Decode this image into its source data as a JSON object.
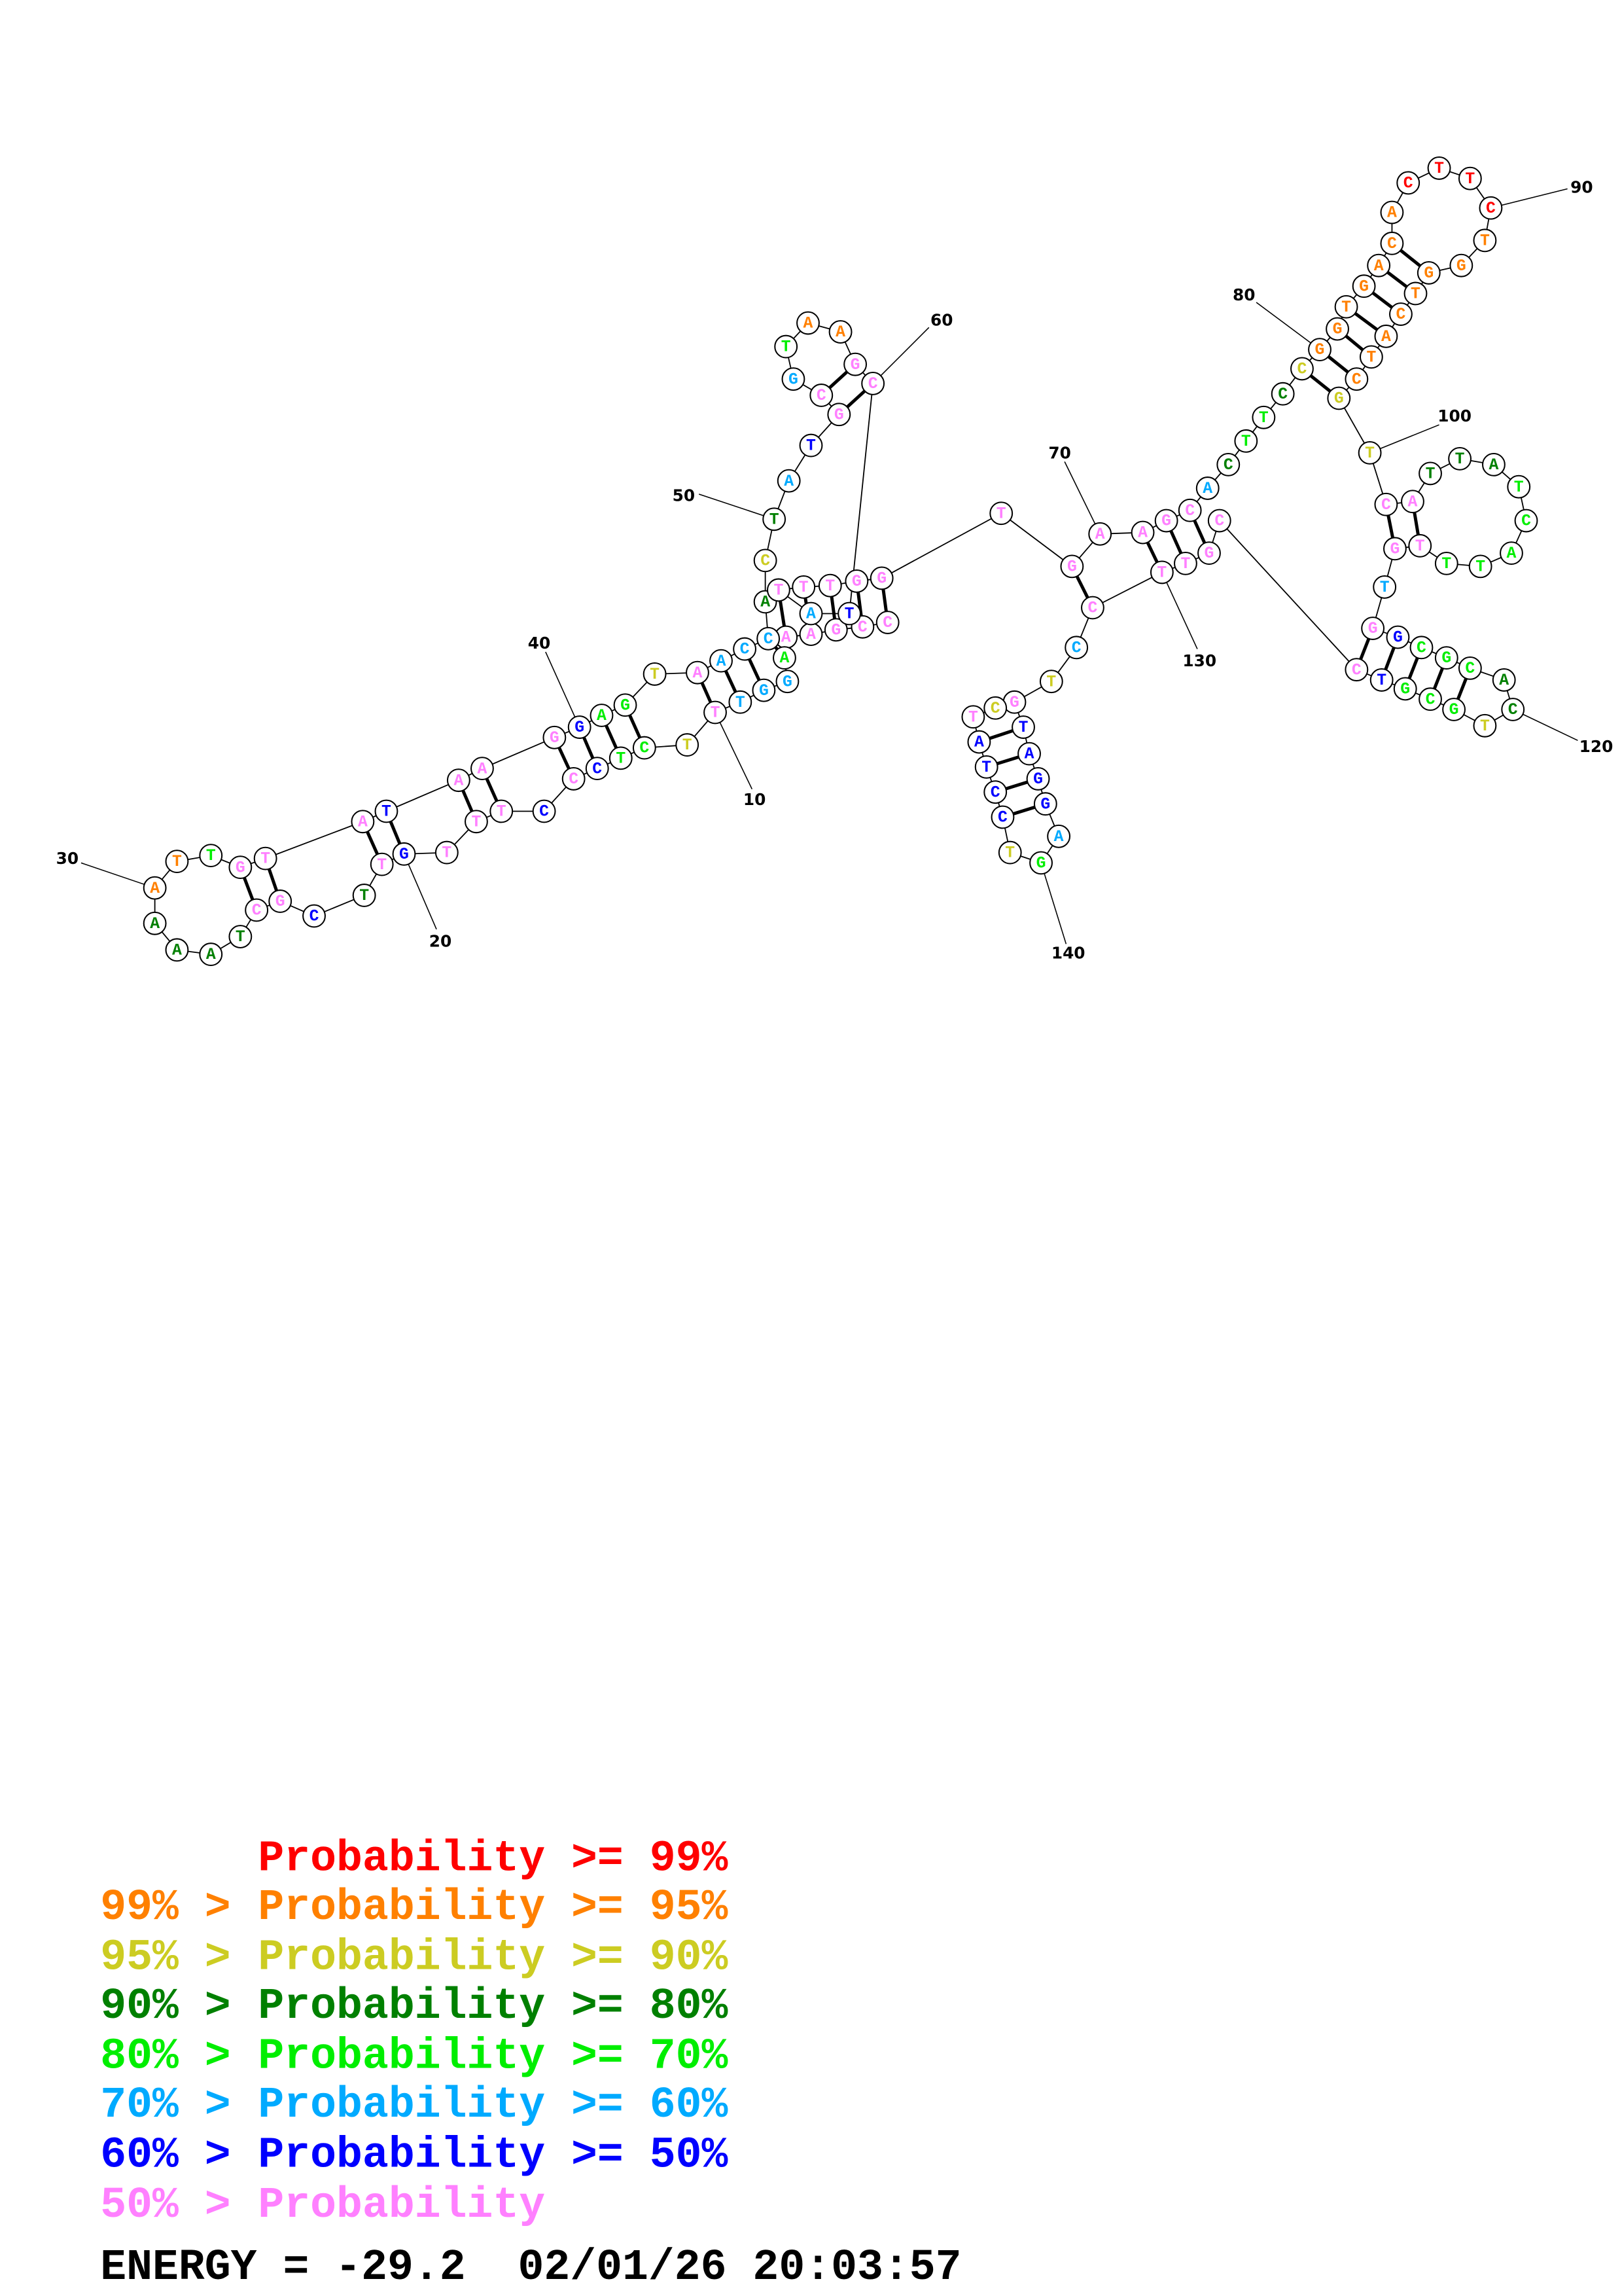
{
  "colors": {
    "R": "#ff0000",
    "O": "#ff8000",
    "Y": "#cccc22",
    "D": "#008000",
    "G": "#00ee00",
    "L": "#00aaff",
    "B": "#0000ff",
    "P": "#ff80ff"
  },
  "structure": {
    "sequence": "CCGAAAGGTTTCTCCCTTTGTTCGCTAAAATTGTATAAGGAGTAACCACTATGCGTAAGCTATTTGGTGAAGCACTTCCGGTGACACTTCTGGTCATCGTCATTATCATTTGTGGCGCACTGCGTCCGTTCCTGTAGGAGTCCTATC",
    "probability_classes": "PPPPPGLLLPYGGBPBPPPBPDBPPDDDDOOGPPPBPPPBGGYPLLLDYDLBPPLGOOPPBLPPPPPPPPPPPLDGGDYOOOOOOORRRROOOOOOOOYYPPDDDGGGGGPPLPBGGGDDYGGGBPPPPPPLYPBBBBLGYBBBBPY",
    "pairs": [
      [
        1,
        67
      ],
      [
        2,
        66
      ],
      [
        3,
        65
      ],
      [
        4,
        64
      ],
      [
        5,
        63
      ],
      [
        6,
        47
      ],
      [
        8,
        46
      ],
      [
        9,
        45
      ],
      [
        10,
        44
      ],
      [
        12,
        42
      ],
      [
        13,
        41
      ],
      [
        14,
        40
      ],
      [
        15,
        39
      ],
      [
        17,
        38
      ],
      [
        18,
        37
      ],
      [
        20,
        36
      ],
      [
        21,
        35
      ],
      [
        24,
        34
      ],
      [
        25,
        33
      ],
      [
        53,
        60
      ],
      [
        54,
        59
      ],
      [
        69,
        131
      ],
      [
        71,
        130
      ],
      [
        72,
        129
      ],
      [
        73,
        128
      ],
      [
        79,
        99
      ],
      [
        80,
        98
      ],
      [
        81,
        97
      ],
      [
        82,
        96
      ],
      [
        83,
        95
      ],
      [
        84,
        94
      ],
      [
        85,
        93
      ],
      [
        101,
        112
      ],
      [
        102,
        111
      ],
      [
        114,
        126
      ],
      [
        115,
        125
      ],
      [
        116,
        124
      ],
      [
        117,
        123
      ],
      [
        118,
        122
      ],
      [
        135,
        145
      ],
      [
        136,
        144
      ],
      [
        137,
        143
      ],
      [
        138,
        142
      ]
    ]
  },
  "position_labels": [
    {
      "nt": 10,
      "text": "10"
    },
    {
      "nt": 20,
      "text": "20"
    },
    {
      "nt": 30,
      "text": "30"
    },
    {
      "nt": 40,
      "text": "40"
    },
    {
      "nt": 50,
      "text": "50"
    },
    {
      "nt": 60,
      "text": "60"
    },
    {
      "nt": 70,
      "text": "70"
    },
    {
      "nt": 80,
      "text": "80"
    },
    {
      "nt": 90,
      "text": "90"
    },
    {
      "nt": 100,
      "text": "100"
    },
    {
      "nt": 120,
      "text": "120"
    },
    {
      "nt": 130,
      "text": "130"
    },
    {
      "nt": 140,
      "text": "140"
    }
  ],
  "legend": [
    {
      "prefix": "",
      "text": "Probability >= 99%",
      "color": "R"
    },
    {
      "prefix": "99% > ",
      "text": "Probability >= 95%",
      "color": "O"
    },
    {
      "prefix": "95% > ",
      "text": "Probability >= 90%",
      "color": "Y"
    },
    {
      "prefix": "90% > ",
      "text": "Probability >= 80%",
      "color": "D"
    },
    {
      "prefix": "80% > ",
      "text": "Probability >= 70%",
      "color": "G"
    },
    {
      "prefix": "70% > ",
      "text": "Probability >= 60%",
      "color": "L"
    },
    {
      "prefix": "60% > ",
      "text": "Probability >= 50%",
      "color": "B"
    },
    {
      "prefix": "50% > ",
      "text": "Probability",
      "color": "P"
    }
  ],
  "footer": {
    "energy": "ENERGY = -29.2  02/01/26 20:03:57"
  }
}
